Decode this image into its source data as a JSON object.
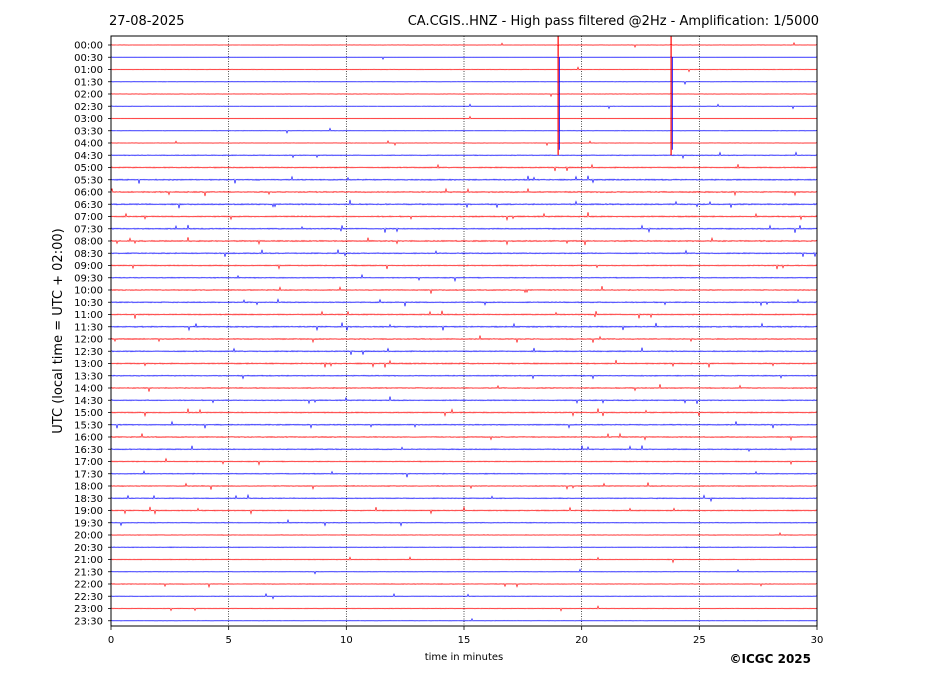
{
  "header": {
    "date": "27-08-2025",
    "title": "CA.CGIS..HNZ - High pass filtered @2Hz - Amplification: 1/5000"
  },
  "footer": {
    "copyright": "©ICGC 2025"
  },
  "colors": {
    "series_a": "#ff0000",
    "series_b": "#0000ff",
    "grid": "#000000",
    "background": "#ffffff"
  },
  "chart_data": {
    "type": "line",
    "xlabel": "time in minutes",
    "ylabel": "UTC (local time = UTC + 02:00)",
    "xlim": [
      0,
      30
    ],
    "x_ticks": [
      0,
      5,
      10,
      15,
      20,
      25,
      30
    ],
    "vertical_grid_minutes": [
      5,
      10,
      15,
      20,
      25
    ],
    "grid": "vertical dotted",
    "y_tick_labels": [
      "00:00",
      "00:30",
      "01:00",
      "01:30",
      "02:00",
      "02:30",
      "03:00",
      "03:30",
      "04:00",
      "04:30",
      "05:00",
      "05:30",
      "06:00",
      "06:30",
      "07:00",
      "07:30",
      "08:00",
      "08:30",
      "09:00",
      "09:30",
      "10:00",
      "10:30",
      "11:00",
      "11:30",
      "12:00",
      "12:30",
      "13:00",
      "13:30",
      "14:00",
      "14:30",
      "15:00",
      "15:30",
      "16:00",
      "16:30",
      "17:00",
      "17:30",
      "18:00",
      "18:30",
      "19:00",
      "19:30",
      "20:00",
      "20:30",
      "21:00",
      "21:30",
      "22:00",
      "22:30",
      "23:00",
      "23:30"
    ],
    "trace_colors": [
      "#ff0000",
      "#0000ff"
    ],
    "trace_activity": [
      0.15,
      0.1,
      0.15,
      0.15,
      0.2,
      0.15,
      0.1,
      0.15,
      0.15,
      0.35,
      0.6,
      0.65,
      0.7,
      0.7,
      0.65,
      0.6,
      0.7,
      0.6,
      0.55,
      0.45,
      0.55,
      0.55,
      0.6,
      0.65,
      0.6,
      0.6,
      0.65,
      0.5,
      0.5,
      0.5,
      0.6,
      0.55,
      0.55,
      0.55,
      0.45,
      0.45,
      0.45,
      0.45,
      0.5,
      0.35,
      0.3,
      0.3,
      0.3,
      0.25,
      0.3,
      0.25,
      0.2,
      0.15
    ],
    "spikes_minutes": [
      {
        "row": 0,
        "minute": 19.0,
        "amplitude": 9
      },
      {
        "row": 0,
        "minute": 23.8,
        "amplitude": 9
      }
    ]
  }
}
